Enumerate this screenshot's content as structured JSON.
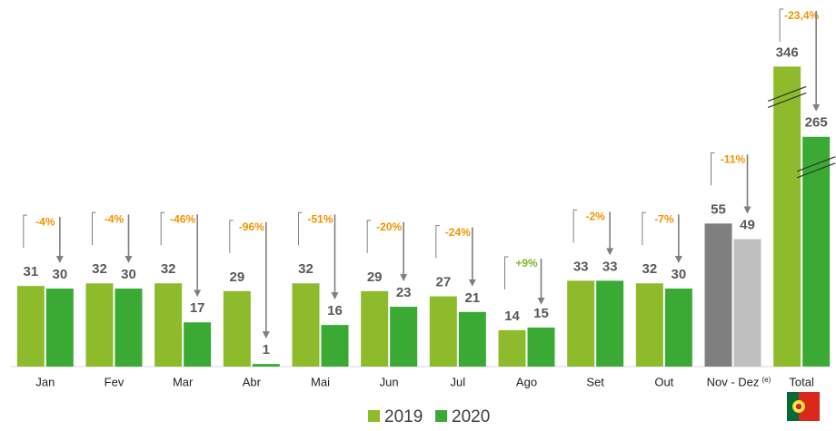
{
  "chart_data": {
    "type": "bar",
    "categories": [
      "Jan",
      "Fev",
      "Mar",
      "Abr",
      "Mai",
      "Jun",
      "Jul",
      "Ago",
      "Set",
      "Out",
      "Nov - Dez",
      "Total"
    ],
    "category_note": "(e)",
    "series": [
      {
        "name": "2019",
        "color": "#8dbb2c",
        "colors": [
          "#8dbb2c",
          "#8dbb2c",
          "#8dbb2c",
          "#8dbb2c",
          "#8dbb2c",
          "#8dbb2c",
          "#8dbb2c",
          "#8dbb2c",
          "#8dbb2c",
          "#8dbb2c",
          "#7f7f7f",
          "#8dbb2c"
        ],
        "values": [
          31,
          32,
          32,
          29,
          32,
          29,
          27,
          14,
          33,
          32,
          55,
          346
        ]
      },
      {
        "name": "2020",
        "color": "#3aaa35",
        "colors": [
          "#3aaa35",
          "#3aaa35",
          "#3aaa35",
          "#3aaa35",
          "#3aaa35",
          "#3aaa35",
          "#3aaa35",
          "#3aaa35",
          "#3aaa35",
          "#3aaa35",
          "#bfbfbf",
          "#3aaa35"
        ],
        "values": [
          30,
          30,
          17,
          1,
          16,
          23,
          21,
          15,
          33,
          30,
          49,
          265
        ]
      }
    ],
    "changes": [
      "-4%",
      "-4%",
      "-46%",
      "-96%",
      "-51%",
      "-20%",
      "-24%",
      "+9%",
      "-2%",
      "-7%",
      "-11%",
      "-23,4%"
    ],
    "change_colors": [
      "#f39200",
      "#f39200",
      "#f39200",
      "#f39200",
      "#f39200",
      "#f39200",
      "#f39200",
      "#7ab929",
      "#f39200",
      "#f39200",
      "#f39200",
      "#f39200"
    ],
    "ylim": [
      0,
      120
    ],
    "axis_break": true,
    "legend": "bottom"
  }
}
